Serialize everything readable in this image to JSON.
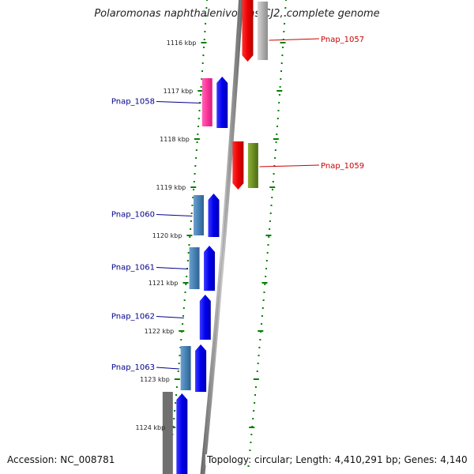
{
  "title": "Polaromonas naphthalenivorans CJ2, complete genome",
  "footer": {
    "accession": "Accession: NC_008781",
    "summary": "Topology: circular; Length: 4,410,291 bp; Genes: 4,140"
  },
  "colors": {
    "forward_gene": "#0000ee",
    "reverse_gene": "#ee0000",
    "label_forward": "#00008b",
    "label_reverse": "#cc0000",
    "tick": "#008000",
    "backbone": "#909090",
    "category_pink": "#ff3399",
    "category_steel": "#4682b4",
    "category_gray": "#b0b0b0",
    "category_olive": "#6b8e23"
  },
  "ticks": [
    "1116 kbp",
    "1117 kbp",
    "1118 kbp",
    "1119 kbp",
    "1120 kbp",
    "1121 kbp",
    "1122 kbp",
    "1123 kbp",
    "1124 kbp"
  ],
  "genes": [
    {
      "label": "Pnap_1057",
      "strand": "reverse",
      "category": "gray"
    },
    {
      "label": "Pnap_1058",
      "strand": "forward",
      "category": "pink"
    },
    {
      "label": "Pnap_1059",
      "strand": "reverse",
      "category": "olive"
    },
    {
      "label": "Pnap_1060",
      "strand": "forward",
      "category": "steel"
    },
    {
      "label": "Pnap_1061",
      "strand": "forward",
      "category": "steel"
    },
    {
      "label": "Pnap_1062",
      "strand": "forward",
      "category": "none"
    },
    {
      "label": "Pnap_1063",
      "strand": "forward",
      "category": "steel"
    }
  ]
}
